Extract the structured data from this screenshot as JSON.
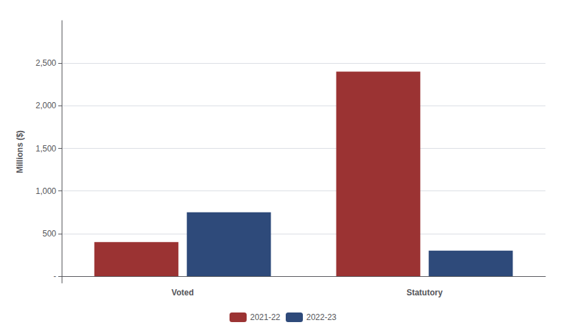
{
  "chart_data": {
    "type": "bar",
    "categories": [
      "Voted",
      "Statutory"
    ],
    "series": [
      {
        "name": "2021-22",
        "color": "#9B3333",
        "values": [
          400,
          2400
        ]
      },
      {
        "name": "2022-23",
        "color": "#2E4A7A",
        "values": [
          750,
          300
        ]
      }
    ],
    "ylabel": "Millions ($)",
    "ylim": [
      -80,
      3000
    ],
    "yticks": [
      {
        "value": 0,
        "label": "-"
      },
      500,
      {
        "value": 1000,
        "label": "1,000"
      },
      {
        "value": 1500,
        "label": "1,500"
      },
      {
        "value": 2000,
        "label": "2,000"
      },
      {
        "value": 2500,
        "label": "2,500"
      }
    ],
    "grid": true,
    "legend": "bottom"
  }
}
